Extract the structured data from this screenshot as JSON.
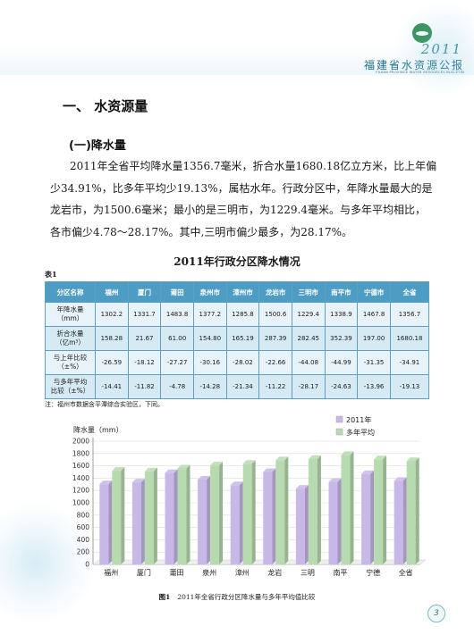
{
  "header": {
    "year": "2011",
    "title_cn": "福建省水资源公报",
    "title_en": "FUJIAN PROVINCE WATER RESOURCES BULLETIN"
  },
  "section_title": "一、 水资源量",
  "subsection_title": "(一)降水量",
  "paragraph_lines": [
    "2011年全省平均降水量1356.7毫米，折合水量1680.18亿立方米，比上年偏",
    "少34.91%，比多年平均少19.13%，属枯水年。行政分区中，年降水量最大的是",
    "龙岩市，为1500.6毫米；最小的是三明市，为1229.4毫米。与多年平均相比，",
    "各市偏少4.78～28.17%。其中,三明市偏少最多，为28.17%。"
  ],
  "table": {
    "title": "2011年行政分区降水情况",
    "label": "表1",
    "headers": [
      "分区名称",
      "福州",
      "厦门",
      "莆田",
      "泉州市",
      "漳州市",
      "龙岩市",
      "三明市",
      "南平市",
      "宁德市",
      "全省"
    ],
    "rows": [
      {
        "label_lines": [
          "年降水量",
          "（mm）"
        ],
        "values": [
          "1302.2",
          "1331.7",
          "1483.8",
          "1377.2",
          "1285.8",
          "1500.6",
          "1229.4",
          "1338.9",
          "1467.8",
          "1356.7"
        ]
      },
      {
        "label_lines": [
          "折合水量",
          "（亿m³）"
        ],
        "values": [
          "158.28",
          "21.67",
          "61.00",
          "154.80",
          "165.19",
          "287.39",
          "282.45",
          "352.39",
          "197.00",
          "1680.18"
        ]
      },
      {
        "label_lines": [
          "与上年比较",
          "（±%）"
        ],
        "values": [
          "-26.59",
          "-18.12",
          "-27.27",
          "-30.16",
          "-28.02",
          "-22.66",
          "-44.08",
          "-44.99",
          "-31.35",
          "-34.91"
        ]
      },
      {
        "label_lines": [
          "与多年平均",
          "比较（±%）"
        ],
        "values": [
          "-14.41",
          "-11.82",
          "-4.78",
          "-14.28",
          "-21.34",
          "-11.22",
          "-28.17",
          "-24.63",
          "-13.96",
          "-19.13"
        ]
      }
    ],
    "note": "注：福州市数据含平潭综合实验区，下同。"
  },
  "chart_data": {
    "type": "bar",
    "ylabel": "降水量（mm）",
    "ylim": [
      0,
      2000
    ],
    "yticks": [
      "0",
      "200",
      "400",
      "600",
      "800",
      "1000",
      "1200",
      "1400",
      "1600",
      "1800",
      "2000"
    ],
    "categories": [
      "福州",
      "厦门",
      "莆田",
      "泉州",
      "漳州",
      "龙岩",
      "三明",
      "南平",
      "宁德",
      "全省"
    ],
    "series": [
      {
        "name": "2011年",
        "color": "#c8b8e8",
        "values": [
          1302.2,
          1331.7,
          1483.8,
          1377.2,
          1285.8,
          1500.6,
          1229.4,
          1338.9,
          1467.8,
          1356.7
        ]
      },
      {
        "name": "多年平均",
        "color": "#b8dab0",
        "values": [
          1521,
          1510,
          1558,
          1606,
          1634,
          1690,
          1711,
          1777,
          1706,
          1678
        ]
      }
    ],
    "legend_position": "top-right",
    "caption_label": "图1",
    "caption": "2011年全省行政分区降水量与多年平均值比较"
  },
  "page_number": "3",
  "colors": {
    "header_accent": "#2b8a8f",
    "table_header": "#4d9cc4",
    "bar_2011": "#c8b8e8",
    "bar_avg": "#b8dab0"
  }
}
